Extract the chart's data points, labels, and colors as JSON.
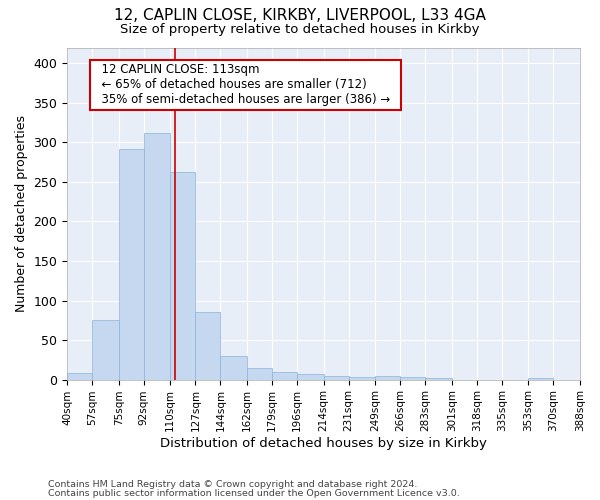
{
  "title_line1": "12, CAPLIN CLOSE, KIRKBY, LIVERPOOL, L33 4GA",
  "title_line2": "Size of property relative to detached houses in Kirkby",
  "xlabel": "Distribution of detached houses by size in Kirkby",
  "ylabel": "Number of detached properties",
  "annotation_line1": "12 CAPLIN CLOSE: 113sqm",
  "annotation_line2": "← 65% of detached houses are smaller (712)",
  "annotation_line3": "35% of semi-detached houses are larger (386) →",
  "property_size": 113,
  "bin_edges": [
    40,
    57,
    75,
    92,
    110,
    127,
    144,
    162,
    179,
    196,
    214,
    231,
    249,
    266,
    283,
    301,
    318,
    335,
    353,
    370,
    388
  ],
  "bar_heights": [
    8,
    75,
    292,
    312,
    263,
    85,
    30,
    15,
    10,
    7,
    5,
    3,
    4,
    3,
    2,
    0,
    0,
    0,
    2,
    0,
    2
  ],
  "bar_color": "#c5d8f0",
  "bar_edge_color": "#8ab4d8",
  "vline_color": "#cc0000",
  "plot_bg_color": "#e8eef8",
  "fig_bg_color": "#ffffff",
  "grid_color": "#ffffff",
  "annotation_bg_color": "#ffffff",
  "annotation_border_color": "#cc0000",
  "ylim": [
    0,
    420
  ],
  "yticks": [
    0,
    50,
    100,
    150,
    200,
    250,
    300,
    350,
    400
  ],
  "footer_line1": "Contains HM Land Registry data © Crown copyright and database right 2024.",
  "footer_line2": "Contains public sector information licensed under the Open Government Licence v3.0."
}
